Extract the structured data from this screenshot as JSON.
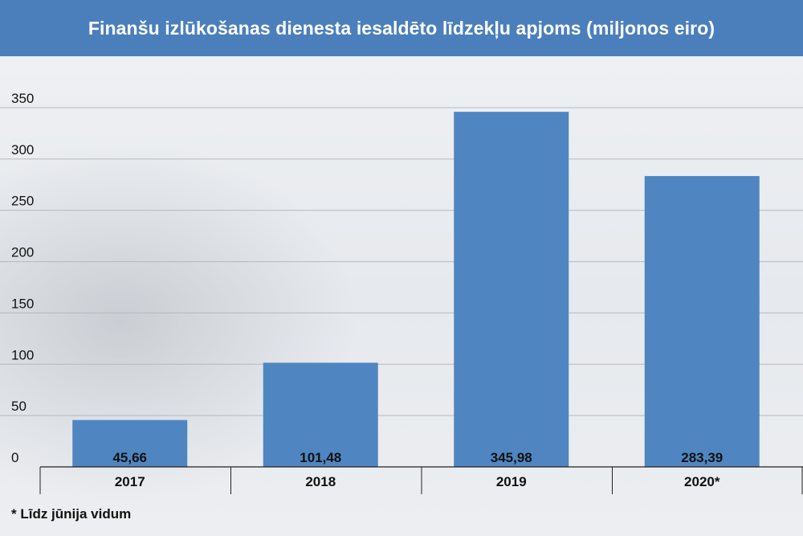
{
  "title": "Finanšu izlūkošanas dienesta iesaldēto līdzekļu apjoms (miljonos eiro)",
  "footnote": "* Līdz jūnija vidum",
  "colors": {
    "header": "#4b7fbc",
    "bar": "#4f86c1",
    "grid": "#b5b8bd",
    "text": "#111111"
  },
  "chart_data": {
    "type": "bar",
    "title": "Finanšu izlūkošanas dienesta iesaldēto līdzekļu apjoms (miljonos eiro)",
    "categories": [
      "2017",
      "2018",
      "2019",
      "2020*"
    ],
    "values": [
      45.66,
      101.48,
      345.98,
      283.39
    ],
    "value_labels": [
      "45,66",
      "101,48",
      "345,98",
      "283,39"
    ],
    "yticks": [
      0,
      50,
      100,
      150,
      200,
      250,
      300,
      350
    ],
    "ylim": [
      0,
      350
    ],
    "xlabel": "",
    "ylabel": "",
    "grid": true,
    "legend": "none"
  }
}
